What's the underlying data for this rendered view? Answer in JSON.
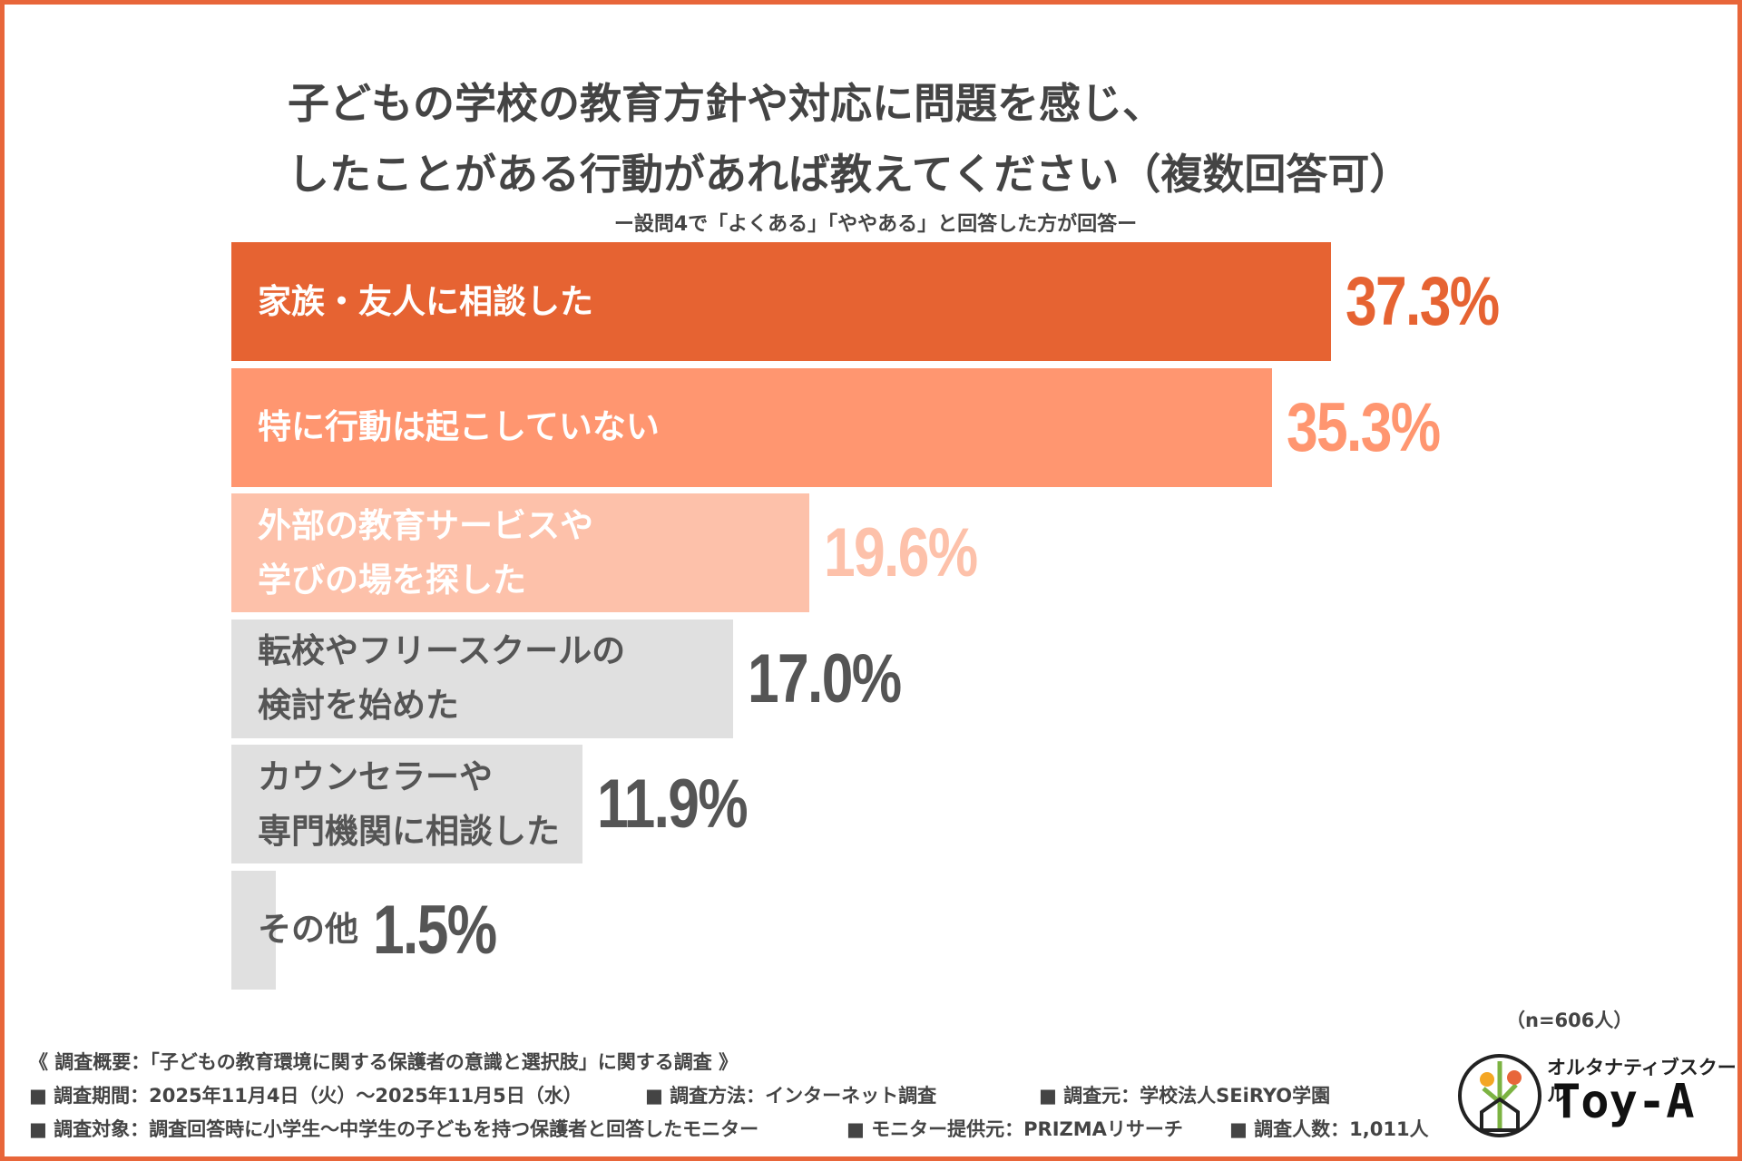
{
  "chart_data": {
    "type": "bar",
    "orientation": "horizontal",
    "title": "子どもの学校の教育方針や対応に問題を感じ、\nしたことがある行動があれば教えてください（複数回答可）",
    "subtitle": "ー設問4で「よくある」「ややある」と回答した方が回答ー",
    "categories": [
      "家族・友人に相談した",
      "特に行動は起こしていない",
      "外部の教育サービスや\n学びの場を探した",
      "転校やフリースクールの\n検討を始めた",
      "カウンセラーや\n専門機関に相談した",
      "その他"
    ],
    "values": [
      37.3,
      35.3,
      19.6,
      17.0,
      11.9,
      1.5
    ],
    "value_labels": [
      "37.3%",
      "35.3%",
      "19.6%",
      "17.0%",
      "11.9%",
      "1.5%"
    ],
    "colors": [
      "#e66332",
      "#ff9670",
      "#fdc1aa",
      "#e0e0e0",
      "#e0e0e0",
      "#e0e0e0"
    ],
    "value_label_colors": [
      "#e66332",
      "#ff9670",
      "#fdc1aa",
      "#555555",
      "#555555",
      "#555555"
    ],
    "note": "（n=606人）"
  },
  "footer": {
    "survey_title": "《 調査概要：「子どもの教育環境に関する保護者の意識と選択肢」に関する調査 》",
    "rows": [
      [
        "■ 調査期間：2025年11月4日（火）～2025年11月5日（水）",
        "■ 調査方法：インターネット調査",
        "■ 調査元：学校法人SEiRYO学園"
      ],
      [
        "■ 調査対象：調査回答時に小学生～中学生の子どもを持つ保護者と回答したモニター",
        "■ モニター提供元：PRIZMAリサーチ",
        "■ 調査人数：1,011人"
      ]
    ]
  },
  "logo": {
    "tagline": "オルタナティブスクール",
    "name": "Toy-A"
  }
}
